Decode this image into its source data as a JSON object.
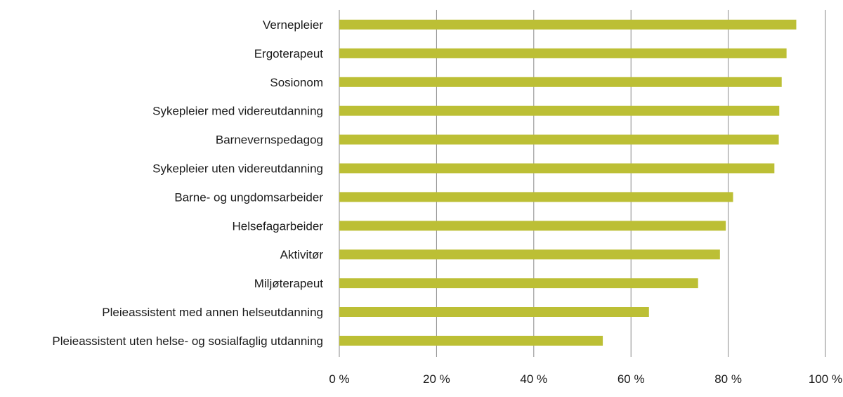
{
  "chart_data": {
    "type": "bar",
    "orientation": "horizontal",
    "title": "",
    "xlabel": "",
    "ylabel": "",
    "categories": [
      "Vernepleier",
      "Ergoterapeut",
      "Sosionom",
      "Sykepleier med videreutdanning",
      "Barnevernspedagog",
      "Sykepleier uten videreutdanning",
      "Barne- og ungdomsarbeider",
      "Helsefagarbeider",
      "Aktivitør",
      "Miljøterapeut",
      "Pleieassistent med annen helseutdanning",
      "Pleieassistent uten helse- og sosialfaglig utdanning"
    ],
    "values": [
      94,
      92,
      91,
      90.5,
      90.4,
      89.5,
      81,
      79.5,
      78.3,
      73.8,
      63.7,
      54.2
    ],
    "xlim": [
      0,
      100
    ],
    "ticks": [
      0,
      20,
      40,
      60,
      80,
      100
    ],
    "tick_labels": [
      "0 %",
      "20 %",
      "40 %",
      "60 %",
      "80 %",
      "100 %"
    ],
    "grid": true,
    "legend": "none",
    "colors": {
      "bar": "#bcbf35",
      "grid": "#8a8a8a",
      "text": "#1a1a1a"
    }
  }
}
